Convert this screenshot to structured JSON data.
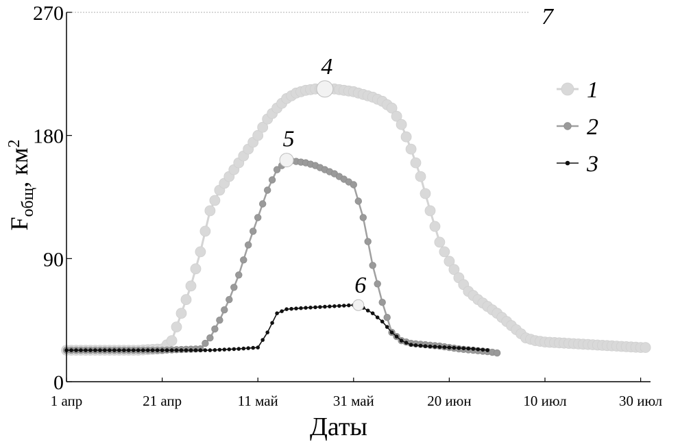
{
  "chart_data": {
    "type": "line",
    "xlabel": "Даты",
    "ylabel": {
      "main": "F",
      "sub": "общ",
      "rest": ", км",
      "sup": "2"
    },
    "ylim": [
      0,
      270
    ],
    "yticks": [
      0,
      90,
      180,
      270
    ],
    "xlim": [
      0,
      122
    ],
    "xticks": [
      {
        "day": 0,
        "label": "1 апр"
      },
      {
        "day": 20,
        "label": "21 апр"
      },
      {
        "day": 40,
        "label": "11 май"
      },
      {
        "day": 60,
        "label": "31 май"
      },
      {
        "day": 80,
        "label": "20 июн"
      },
      {
        "day": 100,
        "label": "10 июл"
      },
      {
        "day": 120,
        "label": "30 июл"
      }
    ],
    "grid": false,
    "legend_position": "right",
    "reference_line": {
      "value": 270,
      "label": "7"
    },
    "series": [
      {
        "name": "1",
        "color": "#d6d6d6",
        "marker": "large-circle",
        "points": [
          [
            0,
            23
          ],
          [
            5,
            23
          ],
          [
            10,
            23
          ],
          [
            15,
            23
          ],
          [
            20,
            24
          ],
          [
            22,
            30
          ],
          [
            24,
            50
          ],
          [
            26,
            70
          ],
          [
            28,
            95
          ],
          [
            30,
            125
          ],
          [
            32,
            140
          ],
          [
            34,
            150
          ],
          [
            36,
            160
          ],
          [
            38,
            170
          ],
          [
            40,
            180
          ],
          [
            42,
            192
          ],
          [
            44,
            200
          ],
          [
            46,
            207
          ],
          [
            48,
            211
          ],
          [
            50,
            213
          ],
          [
            52,
            214
          ],
          [
            54,
            214
          ],
          [
            56,
            214
          ],
          [
            58,
            213
          ],
          [
            60,
            212
          ],
          [
            62,
            210
          ],
          [
            64,
            208
          ],
          [
            66,
            205
          ],
          [
            68,
            200
          ],
          [
            70,
            188
          ],
          [
            72,
            170
          ],
          [
            74,
            150
          ],
          [
            76,
            125
          ],
          [
            78,
            102
          ],
          [
            80,
            88
          ],
          [
            82,
            76
          ],
          [
            84,
            66
          ],
          [
            86,
            60
          ],
          [
            88,
            55
          ],
          [
            90,
            50
          ],
          [
            92,
            44
          ],
          [
            94,
            38
          ],
          [
            96,
            32
          ],
          [
            98,
            30
          ],
          [
            100,
            29
          ],
          [
            105,
            28
          ],
          [
            110,
            27
          ],
          [
            115,
            26
          ],
          [
            120,
            25
          ],
          [
            121,
            25
          ]
        ]
      },
      {
        "name": "2",
        "color": "#999999",
        "marker": "medium-circle",
        "points": [
          [
            0,
            23
          ],
          [
            10,
            23
          ],
          [
            20,
            23
          ],
          [
            28,
            24
          ],
          [
            30,
            32
          ],
          [
            32,
            45
          ],
          [
            34,
            60
          ],
          [
            36,
            78
          ],
          [
            38,
            100
          ],
          [
            40,
            120
          ],
          [
            42,
            140
          ],
          [
            44,
            155
          ],
          [
            45,
            158
          ],
          [
            46,
            162
          ],
          [
            48,
            161
          ],
          [
            50,
            160
          ],
          [
            52,
            158
          ],
          [
            54,
            155
          ],
          [
            56,
            152
          ],
          [
            58,
            148
          ],
          [
            60,
            144
          ],
          [
            62,
            120
          ],
          [
            64,
            85
          ],
          [
            66,
            58
          ],
          [
            68,
            36
          ],
          [
            70,
            30
          ],
          [
            72,
            28
          ],
          [
            75,
            27
          ],
          [
            78,
            26
          ],
          [
            80,
            25
          ],
          [
            82,
            24
          ],
          [
            85,
            23
          ],
          [
            88,
            22
          ],
          [
            90,
            21
          ]
        ]
      },
      {
        "name": "3",
        "color": "#111111",
        "marker": "small-dot",
        "points": [
          [
            0,
            23
          ],
          [
            10,
            23
          ],
          [
            20,
            23
          ],
          [
            30,
            23
          ],
          [
            36,
            24
          ],
          [
            40,
            25
          ],
          [
            42,
            36
          ],
          [
            44,
            50
          ],
          [
            46,
            53
          ],
          [
            50,
            54
          ],
          [
            55,
            55
          ],
          [
            60,
            56
          ],
          [
            62,
            54
          ],
          [
            64,
            50
          ],
          [
            66,
            44
          ],
          [
            68,
            36
          ],
          [
            70,
            30
          ],
          [
            72,
            27
          ],
          [
            75,
            26
          ],
          [
            80,
            25
          ],
          [
            85,
            24
          ],
          [
            88,
            23
          ]
        ]
      }
    ],
    "annotations": [
      {
        "label": "4",
        "x": 54,
        "y": 214
      },
      {
        "label": "5",
        "x": 46,
        "y": 162
      },
      {
        "label": "6",
        "x": 61,
        "y": 56
      }
    ]
  }
}
